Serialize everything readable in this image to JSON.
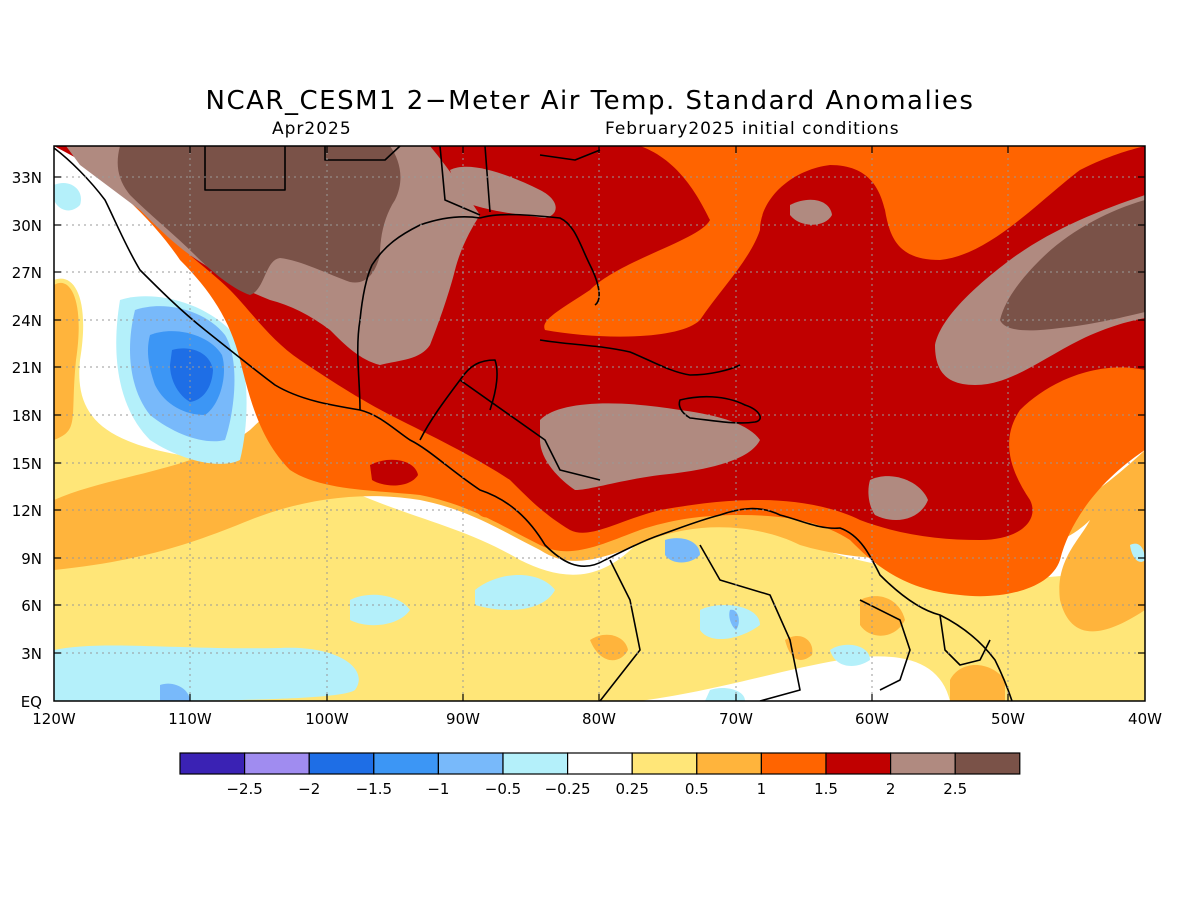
{
  "header": {
    "title": "NCAR_CESM1 2−Meter Air Temp. Standard Anomalies",
    "valid_month": "Apr2025",
    "init": "February2025 initial conditions"
  },
  "axes": {
    "lat_ticks": [
      "33N",
      "30N",
      "27N",
      "24N",
      "21N",
      "18N",
      "15N",
      "12N",
      "9N",
      "6N",
      "3N",
      "EQ"
    ],
    "lon_ticks": [
      "120W",
      "110W",
      "100W",
      "90W",
      "80W",
      "70W",
      "60W",
      "50W",
      "40W"
    ],
    "lat_range": [
      0,
      35
    ],
    "lon_range": [
      -120,
      -40
    ],
    "grid": true
  },
  "colorbar": {
    "colors": [
      "#3a22b4",
      "#a08cf0",
      "#1e6ee6",
      "#3c96f5",
      "#78b9fa",
      "#b4f0fa",
      "#ffffff",
      "#ffe678",
      "#ffb43c",
      "#ff6400",
      "#c00000",
      "#b08a80",
      "#7a5248"
    ],
    "labels": [
      "−2.5",
      "−2",
      "−1.5",
      "−1",
      "−0.5",
      "−0.25",
      "0.25",
      "0.5",
      "1",
      "1.5",
      "2",
      "2.5"
    ]
  }
}
